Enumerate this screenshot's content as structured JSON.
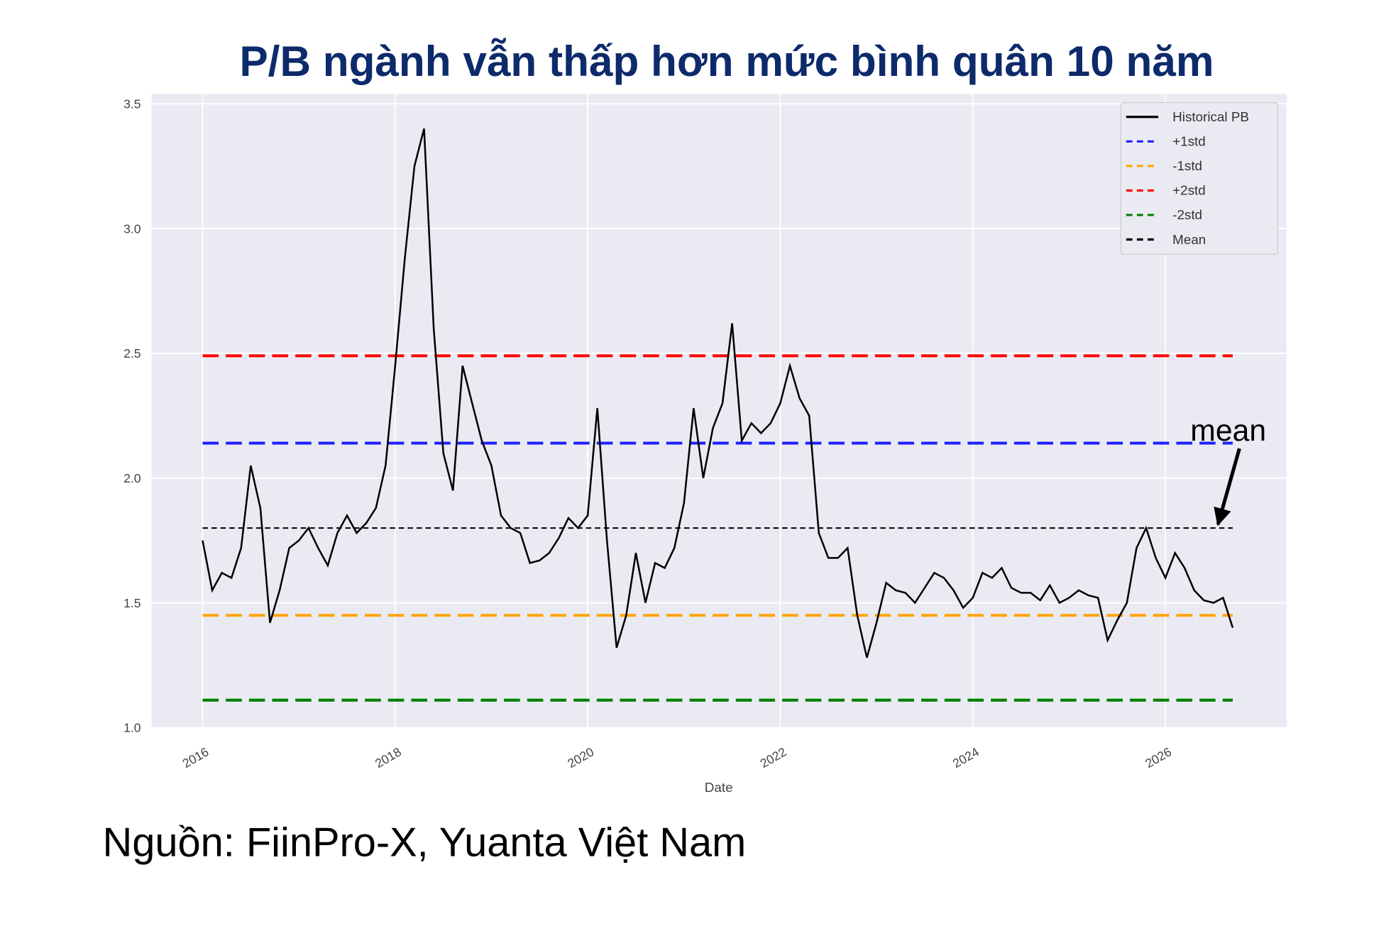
{
  "chart_data": {
    "type": "line",
    "title": "P/B ngành vẫn thấp hơn mức bình quân 10 năm",
    "xlabel": "Date",
    "source": "Nguồn: FiinPro-X, Yuanta Việt Nam",
    "annotation": "mean",
    "xlim": [
      2015.47,
      2027.26
    ],
    "xticks": [
      2016,
      2018,
      2020,
      2022,
      2024,
      2026
    ],
    "ylim": [
      1.0,
      3.54
    ],
    "yticks": [
      {
        "value": 1.0,
        "label": "1.0"
      },
      1.5,
      {
        "value": 2.0,
        "label": "2.0"
      },
      2.5,
      {
        "value": 3.0,
        "label": "3.0"
      },
      3.5
    ],
    "grid": true,
    "legend": "upper right",
    "series": [
      {
        "name": "Historical PB",
        "color": "#000000",
        "linestyle": "solid",
        "x": [
          2016.0,
          2016.1,
          2016.2,
          2016.3,
          2016.4,
          2016.5,
          2016.6,
          2016.7,
          2016.8,
          2016.9,
          2017.0,
          2017.1,
          2017.2,
          2017.3,
          2017.4,
          2017.5,
          2017.6,
          2017.7,
          2017.8,
          2017.9,
          2018.0,
          2018.1,
          2018.2,
          2018.3,
          2018.4,
          2018.5,
          2018.6,
          2018.7,
          2018.8,
          2018.9,
          2019.0,
          2019.1,
          2019.2,
          2019.3,
          2019.4,
          2019.5,
          2019.6,
          2019.7,
          2019.8,
          2019.9,
          2020.0,
          2020.1,
          2020.2,
          2020.3,
          2020.4,
          2020.5,
          2020.6,
          2020.7,
          2020.8,
          2020.9,
          2021.0,
          2021.1,
          2021.2,
          2021.3,
          2021.4,
          2021.5,
          2021.6,
          2021.7,
          2021.8,
          2021.9,
          2022.0,
          2022.1,
          2022.2,
          2022.3,
          2022.4,
          2022.5,
          2022.6,
          2022.7,
          2022.8,
          2022.9,
          2023.0,
          2023.1,
          2023.2,
          2023.3,
          2023.4,
          2023.5,
          2023.6,
          2023.7,
          2023.8,
          2023.9,
          2024.0,
          2024.1,
          2024.2,
          2024.3,
          2024.4,
          2024.5,
          2024.6,
          2024.7,
          2024.8,
          2024.9,
          2025.0,
          2025.1,
          2025.2,
          2025.3,
          2025.4,
          2025.5,
          2025.6,
          2025.7,
          2025.8,
          2025.9,
          2026.0,
          2026.1,
          2026.2,
          2026.3,
          2026.4,
          2026.5,
          2026.6,
          2026.7
        ],
        "values": [
          1.75,
          1.55,
          1.62,
          1.6,
          1.72,
          2.05,
          1.88,
          1.42,
          1.55,
          1.72,
          1.75,
          1.8,
          1.72,
          1.65,
          1.78,
          1.85,
          1.78,
          1.82,
          1.88,
          2.05,
          2.45,
          2.88,
          3.25,
          3.4,
          2.6,
          2.1,
          1.95,
          2.45,
          2.3,
          2.15,
          2.05,
          1.85,
          1.8,
          1.78,
          1.66,
          1.67,
          1.7,
          1.76,
          1.84,
          1.8,
          1.85,
          2.28,
          1.75,
          1.32,
          1.45,
          1.7,
          1.5,
          1.66,
          1.64,
          1.72,
          1.9,
          2.28,
          2.0,
          2.2,
          2.3,
          2.62,
          2.15,
          2.22,
          2.18,
          2.22,
          2.3,
          2.45,
          2.32,
          2.25,
          1.78,
          1.68,
          1.68,
          1.72,
          1.45,
          1.28,
          1.42,
          1.58,
          1.55,
          1.54,
          1.5,
          1.56,
          1.62,
          1.6,
          1.55,
          1.48,
          1.52,
          1.62,
          1.6,
          1.64,
          1.56,
          1.54,
          1.54,
          1.51,
          1.57,
          1.5,
          1.52,
          1.55,
          1.53,
          1.52,
          1.35,
          1.43,
          1.5,
          1.72,
          1.8,
          1.68,
          1.6,
          1.7,
          1.64,
          1.55,
          1.51,
          1.5,
          1.52,
          1.4
        ]
      },
      {
        "name": "+1std",
        "color": "#1f1fff",
        "linestyle": "dashed",
        "x": [
          2016.0,
          2026.7
        ],
        "values": [
          2.14,
          2.14
        ]
      },
      {
        "name": "-1std",
        "color": "#ffa500",
        "linestyle": "dashed",
        "x": [
          2016.0,
          2026.7
        ],
        "values": [
          1.45,
          1.45
        ]
      },
      {
        "name": "+2std",
        "color": "#ff0000",
        "linestyle": "dashed",
        "x": [
          2016.0,
          2026.7
        ],
        "values": [
          2.49,
          2.49
        ]
      },
      {
        "name": "-2std",
        "color": "#008000",
        "linestyle": "dashed",
        "x": [
          2016.0,
          2026.7
        ],
        "values": [
          1.11,
          1.11
        ]
      },
      {
        "name": "Mean",
        "color": "#000000",
        "linestyle": "dashed",
        "x": [
          2016.0,
          2026.7
        ],
        "values": [
          1.8,
          1.8
        ]
      }
    ]
  }
}
